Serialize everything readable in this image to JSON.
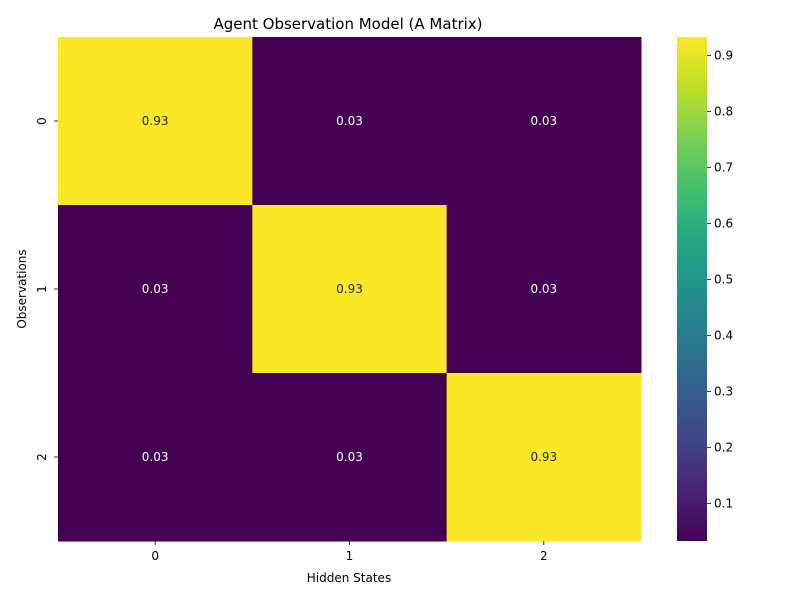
{
  "chart_data": {
    "type": "heatmap",
    "title": "Agent Observation Model (A Matrix)",
    "xlabel": "Hidden States",
    "ylabel": "Observations",
    "x_categories": [
      "0",
      "1",
      "2"
    ],
    "y_categories": [
      "0",
      "1",
      "2"
    ],
    "values": [
      [
        0.93,
        0.03,
        0.03
      ],
      [
        0.03,
        0.93,
        0.03
      ],
      [
        0.03,
        0.03,
        0.93
      ]
    ],
    "cell_labels": [
      [
        "0.93",
        "0.03",
        "0.03"
      ],
      [
        "0.03",
        "0.93",
        "0.03"
      ],
      [
        "0.03",
        "0.03",
        "0.93"
      ]
    ],
    "colormap": "viridis",
    "colorbar": {
      "range": [
        0.0333,
        0.9333
      ],
      "ticks": [
        0.1,
        0.2,
        0.3,
        0.4,
        0.5,
        0.6,
        0.7,
        0.8,
        0.9
      ],
      "tick_labels": [
        "0.1",
        "0.2",
        "0.3",
        "0.4",
        "0.5",
        "0.6",
        "0.7",
        "0.8",
        "0.9"
      ]
    },
    "grid": false,
    "legend": "colorbar-right"
  }
}
